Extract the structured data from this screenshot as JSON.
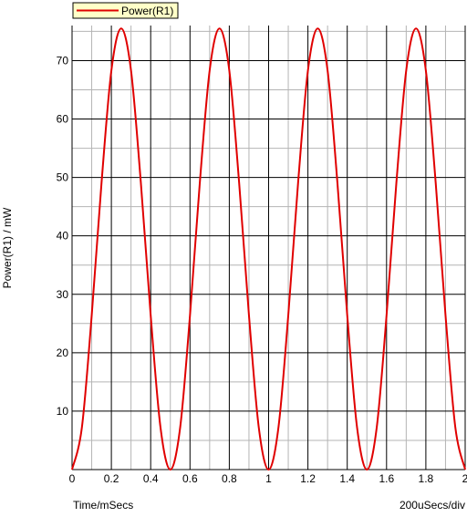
{
  "colors": {
    "background": "#ffffff",
    "major_grid": "#000000",
    "minor_grid": "#b4b4b4",
    "series": "#e00000",
    "legend_fill": "#ffffc8",
    "legend_border": "#000000"
  },
  "chart_data": {
    "type": "line",
    "title": "",
    "xlabel": "Time/mSecs",
    "ylabel": "Power(R1) / mW",
    "x_scale_note": "200uSecs/div",
    "xlim": [
      0,
      2
    ],
    "ylim": [
      0,
      76
    ],
    "x_ticks": [
      0,
      0.2,
      0.4,
      0.6,
      0.8,
      1,
      1.2,
      1.4,
      1.6,
      1.8,
      2
    ],
    "x_tick_labels": [
      "0",
      "0.2",
      "0.4",
      "0.6",
      "0.8",
      "1",
      "1.2",
      "1.4",
      "1.6",
      "1.8",
      "2"
    ],
    "y_ticks": [
      10,
      20,
      30,
      40,
      50,
      60,
      70
    ],
    "y_tick_labels": [
      "10",
      "20",
      "30",
      "40",
      "50",
      "60",
      "70"
    ],
    "grid": true,
    "legend_position": "top-left",
    "series": [
      {
        "name": "Power(R1)",
        "color": "#e00000",
        "x": [
          0,
          0.05,
          0.1,
          0.15,
          0.2,
          0.25,
          0.3,
          0.35,
          0.4,
          0.45,
          0.5,
          0.55,
          0.6,
          0.65,
          0.7,
          0.75,
          0.8,
          0.85,
          0.9,
          0.95,
          1,
          1.05,
          1.1,
          1.15,
          1.2,
          1.25,
          1.3,
          1.35,
          1.4,
          1.45,
          1.5,
          1.55,
          1.6,
          1.65,
          1.7,
          1.75,
          1.8,
          1.85,
          1.9,
          1.95,
          2
        ],
        "y": [
          0,
          7.2,
          26.4,
          49.1,
          68.3,
          75.5,
          68.3,
          49.1,
          26.4,
          7.2,
          0,
          7.2,
          26.4,
          49.1,
          68.3,
          75.5,
          68.3,
          49.1,
          26.4,
          7.2,
          0,
          7.2,
          26.4,
          49.1,
          68.3,
          75.5,
          68.3,
          49.1,
          26.4,
          7.2,
          0,
          7.2,
          26.4,
          49.1,
          68.3,
          75.5,
          68.3,
          49.1,
          26.4,
          7.2,
          0
        ]
      }
    ]
  }
}
